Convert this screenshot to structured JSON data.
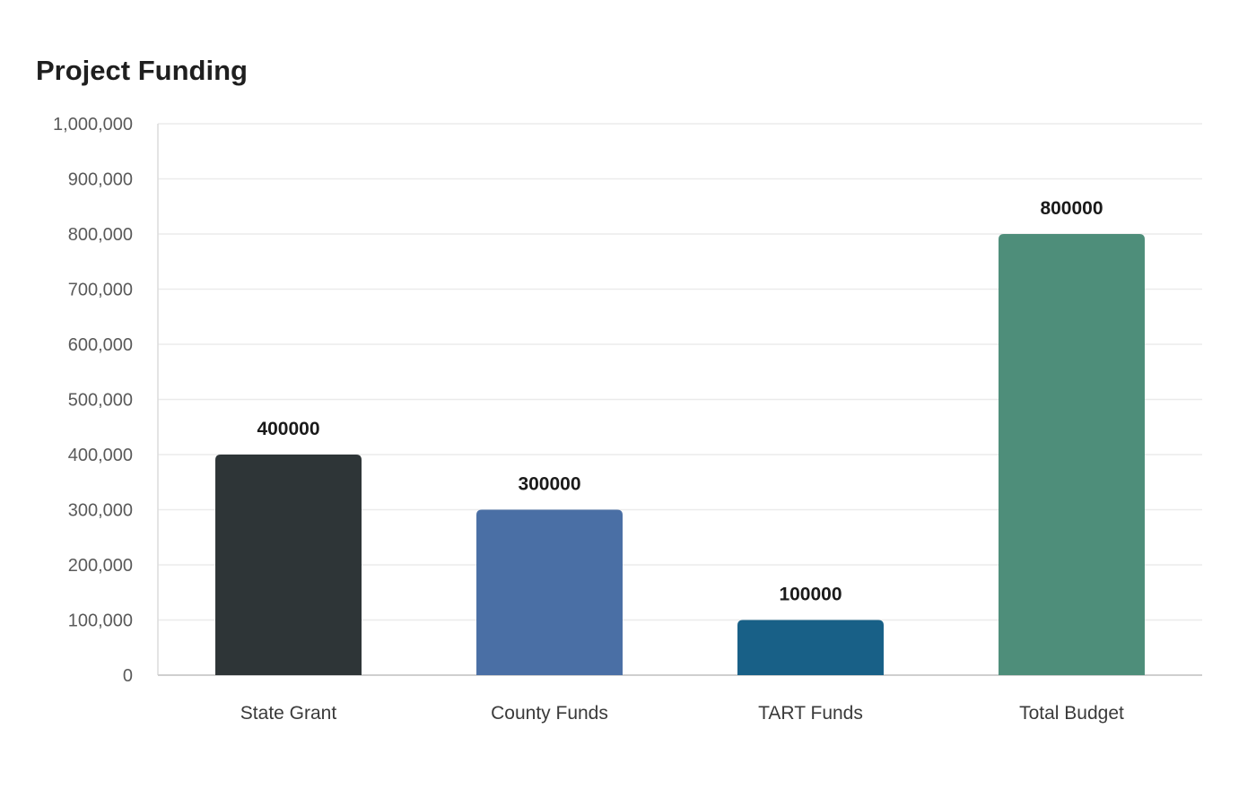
{
  "chart_data": {
    "type": "bar",
    "title": "Project Funding",
    "categories": [
      "State Grant",
      "County Funds",
      "TART Funds",
      "Total Budget"
    ],
    "values": [
      400000,
      300000,
      100000,
      800000
    ],
    "data_labels": [
      "400000",
      "300000",
      "100000",
      "800000"
    ],
    "colors": [
      "#2e3537",
      "#4a6fa5",
      "#186087",
      "#4e8e7a"
    ],
    "ylim": [
      0,
      1000000
    ],
    "yticks": [
      0,
      100000,
      200000,
      300000,
      400000,
      500000,
      600000,
      700000,
      800000,
      900000,
      1000000
    ],
    "ytick_labels": [
      "0",
      "100,000",
      "200,000",
      "300,000",
      "400,000",
      "500,000",
      "600,000",
      "700,000",
      "800,000",
      "900,000",
      "1,000,000"
    ],
    "grid": true,
    "legend": "none"
  }
}
